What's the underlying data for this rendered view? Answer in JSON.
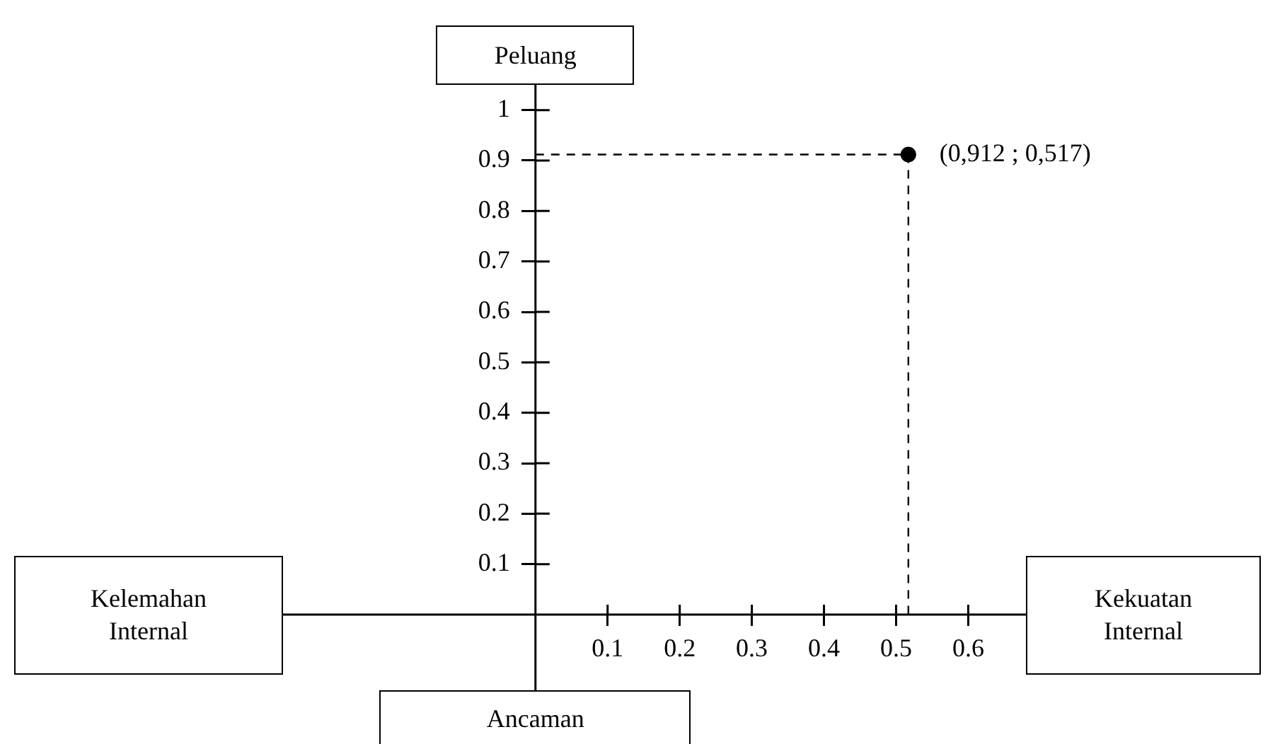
{
  "chart_data": {
    "type": "scatter",
    "x": [
      0.517
    ],
    "values": [
      0.912
    ],
    "color": "#000000",
    "marker": "circle",
    "xlim": [
      -0.35,
      0.68
    ],
    "ylim": [
      -0.15,
      1.05
    ],
    "xticks": [
      0.1,
      0.2,
      0.3,
      0.4,
      0.5,
      0.6
    ],
    "yticks": [
      0.1,
      0.2,
      0.3,
      0.4,
      0.5,
      0.6,
      0.7,
      0.8,
      0.9,
      1
    ],
    "annotations": [
      "Peluang",
      "Kelemahan Internal",
      "Kekuatan Internal",
      "Ancaman",
      {
        "text": "(0,912 ; 0,517)",
        "x": 0.517,
        "y": 0.912
      }
    ],
    "grid": false,
    "legend": false
  }
}
